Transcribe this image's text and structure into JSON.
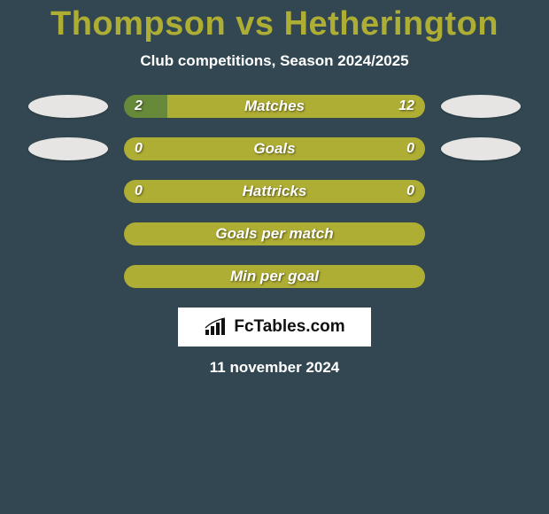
{
  "title": "Thompson vs Hetherington",
  "subtitle": "Club competitions, Season 2024/2025",
  "colors": {
    "background": "#324751",
    "accent": "#afae34",
    "oval": "#e6e5e3",
    "text_light": "#ffffff",
    "logo_bg": "#ffffff",
    "logo_text": "#111111"
  },
  "rows": [
    {
      "label": "Matches",
      "left_value": "2",
      "right_value": "12",
      "left_oval": true,
      "right_oval": true,
      "left_pct": 14.3,
      "right_pct": 85.7,
      "left_color": "#66893a",
      "right_color": "#afae34"
    },
    {
      "label": "Goals",
      "left_value": "0",
      "right_value": "0",
      "left_oval": true,
      "right_oval": true,
      "left_pct": 50,
      "right_pct": 50,
      "left_color": "#afae34",
      "right_color": "#afae34"
    },
    {
      "label": "Hattricks",
      "left_value": "0",
      "right_value": "0",
      "left_oval": false,
      "right_oval": false,
      "left_pct": 50,
      "right_pct": 50,
      "left_color": "#afae34",
      "right_color": "#afae34"
    },
    {
      "label": "Goals per match",
      "left_value": "",
      "right_value": "",
      "left_oval": false,
      "right_oval": false,
      "left_pct": 50,
      "right_pct": 50,
      "left_color": "#afae34",
      "right_color": "#afae34"
    },
    {
      "label": "Min per goal",
      "left_value": "",
      "right_value": "",
      "left_oval": false,
      "right_oval": false,
      "left_pct": 50,
      "right_pct": 50,
      "left_color": "#afae34",
      "right_color": "#afae34"
    }
  ],
  "logo_text": "FcTables.com",
  "date": "11 november 2024"
}
